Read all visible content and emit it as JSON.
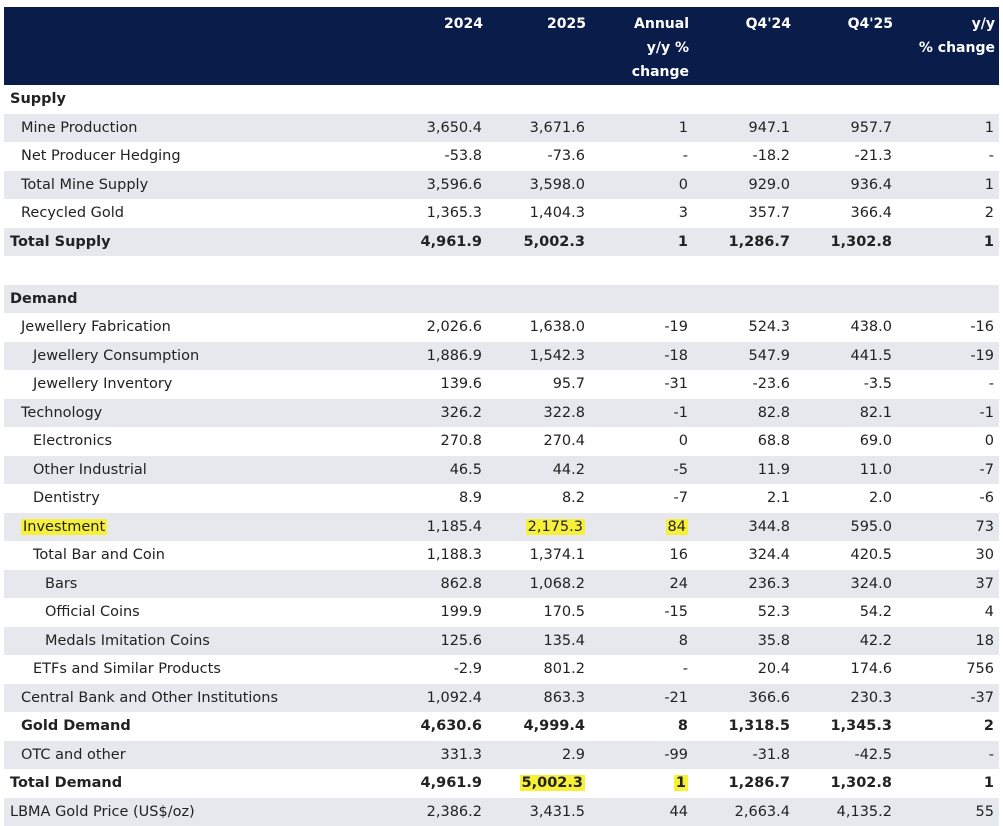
{
  "header": {
    "label": "",
    "col_2024": "2024",
    "col_2025": "2025",
    "col_annual_1": "Annual",
    "col_annual_2": "y/y %",
    "col_annual_3": "change",
    "col_q424": "Q4'24",
    "col_q425": "Q4'25",
    "col_yy_1": "y/y",
    "col_yy_2": "% change"
  },
  "rows": [
    {
      "label": "Supply",
      "type": "section",
      "shade": false,
      "values": [
        "",
        "",
        "",
        "",
        "",
        ""
      ]
    },
    {
      "label": "Mine Production",
      "indent": 1,
      "shade": true,
      "values": [
        "3,650.4",
        "3,671.6",
        "1",
        "947.1",
        "957.7",
        "1"
      ]
    },
    {
      "label": "Net Producer Hedging",
      "indent": 1,
      "shade": false,
      "values": [
        "-53.8",
        "-73.6",
        "-",
        "-18.2",
        "-21.3",
        "-"
      ]
    },
    {
      "label": "Total Mine Supply",
      "indent": 1,
      "shade": true,
      "values": [
        "3,596.6",
        "3,598.0",
        "0",
        "929.0",
        "936.4",
        "1"
      ]
    },
    {
      "label": "Recycled Gold",
      "indent": 1,
      "shade": false,
      "values": [
        "1,365.3",
        "1,404.3",
        "3",
        "357.7",
        "366.4",
        "2"
      ]
    },
    {
      "label": "Total Supply",
      "indent": 0,
      "bold": true,
      "shade": true,
      "values": [
        "4,961.9",
        "5,002.3",
        "1",
        "1,286.7",
        "1,302.8",
        "1"
      ]
    },
    {
      "label": "",
      "type": "spacer",
      "shade": false,
      "values": [
        "",
        "",
        "",
        "",
        "",
        ""
      ]
    },
    {
      "label": "Demand",
      "type": "section",
      "shade": true,
      "values": [
        "",
        "",
        "",
        "",
        "",
        ""
      ]
    },
    {
      "label": "Jewellery Fabrication",
      "indent": 1,
      "shade": false,
      "values": [
        "2,026.6",
        "1,638.0",
        "-19",
        "524.3",
        "438.0",
        "-16"
      ]
    },
    {
      "label": "Jewellery Consumption",
      "indent": 2,
      "shade": true,
      "values": [
        "1,886.9",
        "1,542.3",
        "-18",
        "547.9",
        "441.5",
        "-19"
      ]
    },
    {
      "label": "Jewellery Inventory",
      "indent": 2,
      "shade": false,
      "values": [
        "139.6",
        "95.7",
        "-31",
        "-23.6",
        "-3.5",
        "-"
      ]
    },
    {
      "label": "Technology",
      "indent": 1,
      "shade": true,
      "values": [
        "326.2",
        "322.8",
        "-1",
        "82.8",
        "82.1",
        "-1"
      ]
    },
    {
      "label": "Electronics",
      "indent": 2,
      "shade": false,
      "values": [
        "270.8",
        "270.4",
        "0",
        "68.8",
        "69.0",
        "0"
      ]
    },
    {
      "label": "Other Industrial",
      "indent": 2,
      "shade": true,
      "values": [
        "46.5",
        "44.2",
        "-5",
        "11.9",
        "11.0",
        "-7"
      ]
    },
    {
      "label": "Dentistry",
      "indent": 2,
      "shade": false,
      "values": [
        "8.9",
        "8.2",
        "-7",
        "2.1",
        "2.0",
        "-6"
      ]
    },
    {
      "label": "Investment",
      "indent": 1,
      "shade": true,
      "hl_label": true,
      "hl": [
        1,
        2
      ],
      "values": [
        "1,185.4",
        "2,175.3",
        "84",
        "344.8",
        "595.0",
        "73"
      ]
    },
    {
      "label": "Total Bar and Coin",
      "indent": 2,
      "shade": false,
      "values": [
        "1,188.3",
        "1,374.1",
        "16",
        "324.4",
        "420.5",
        "30"
      ]
    },
    {
      "label": "Bars",
      "indent": 3,
      "shade": true,
      "values": [
        "862.8",
        "1,068.2",
        "24",
        "236.3",
        "324.0",
        "37"
      ]
    },
    {
      "label": "Official Coins",
      "indent": 3,
      "shade": false,
      "values": [
        "199.9",
        "170.5",
        "-15",
        "52.3",
        "54.2",
        "4"
      ]
    },
    {
      "label": "Medals Imitation Coins",
      "indent": 3,
      "shade": true,
      "values": [
        "125.6",
        "135.4",
        "8",
        "35.8",
        "42.2",
        "18"
      ]
    },
    {
      "label": "ETFs and Similar Products",
      "indent": 2,
      "shade": false,
      "values": [
        "-2.9",
        "801.2",
        "-",
        "20.4",
        "174.6",
        "756"
      ]
    },
    {
      "label": "Central Bank and Other Institutions",
      "indent": 1,
      "shade": true,
      "values": [
        "1,092.4",
        "863.3",
        "-21",
        "366.6",
        "230.3",
        "-37"
      ]
    },
    {
      "label": "Gold Demand",
      "indent": 1,
      "bold": true,
      "shade": false,
      "values": [
        "4,630.6",
        "4,999.4",
        "8",
        "1,318.5",
        "1,345.3",
        "2"
      ]
    },
    {
      "label": "OTC and other",
      "indent": 1,
      "shade": true,
      "values": [
        "331.3",
        "2.9",
        "-99",
        "-31.8",
        "-42.5",
        "-"
      ]
    },
    {
      "label": "Total Demand",
      "indent": 0,
      "bold": true,
      "shade": false,
      "hl": [
        1,
        2
      ],
      "values": [
        "4,961.9",
        "5,002.3",
        "1",
        "1,286.7",
        "1,302.8",
        "1"
      ]
    },
    {
      "label": "LBMA Gold Price (US$/oz)",
      "indent": 0,
      "shade": true,
      "values": [
        "2,386.2",
        "3,431.5",
        "44",
        "2,663.4",
        "4,135.2",
        "55"
      ]
    }
  ],
  "colors": {
    "header_bg": "#0a1d4a",
    "row_shade": "#e7e8ed",
    "highlight": "#f7f038"
  }
}
